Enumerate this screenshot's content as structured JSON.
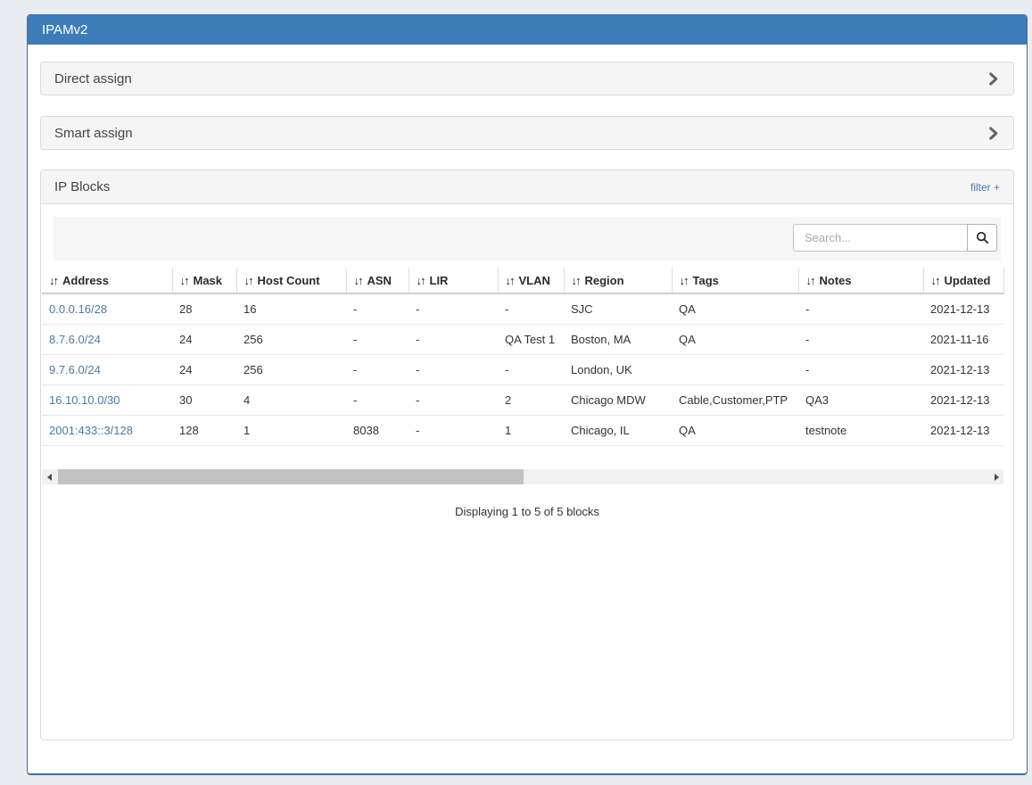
{
  "app": {
    "title": "IPAMv2"
  },
  "icons": {
    "sort_glyph": "↓↑"
  },
  "colors": {
    "header_blue": "#3e7cb9",
    "container_border": "#44719f",
    "link_blue": "#4a79ad",
    "panel_bg": "#f5f5f5"
  },
  "panels": {
    "direct_assign": {
      "title": "Direct assign"
    },
    "smart_assign": {
      "title": "Smart assign"
    },
    "ip_blocks": {
      "title": "IP Blocks",
      "filter_label": "filter +",
      "search_placeholder": "Search...",
      "summary": "Displaying 1 to 5 of 5 blocks",
      "table": {
        "columns": [
          {
            "key": "address",
            "label": "Address"
          },
          {
            "key": "mask",
            "label": "Mask"
          },
          {
            "key": "host_count",
            "label": "Host Count"
          },
          {
            "key": "asn",
            "label": "ASN"
          },
          {
            "key": "lir",
            "label": "LIR"
          },
          {
            "key": "vlan",
            "label": "VLAN"
          },
          {
            "key": "region",
            "label": "Region"
          },
          {
            "key": "tags",
            "label": "Tags"
          },
          {
            "key": "notes",
            "label": "Notes"
          },
          {
            "key": "updated",
            "label": "Updated"
          }
        ],
        "rows": [
          {
            "address": "0.0.0.16/28",
            "mask": "28",
            "host_count": "16",
            "asn": "-",
            "lir": "-",
            "vlan": "-",
            "region": "SJC",
            "tags": "QA",
            "notes": "-",
            "updated": "2021-12-13"
          },
          {
            "address": "8.7.6.0/24",
            "mask": "24",
            "host_count": "256",
            "asn": "-",
            "lir": "-",
            "vlan": "QA Test 1",
            "region": "Boston, MA",
            "tags": "QA",
            "notes": "-",
            "updated": "2021-11-16"
          },
          {
            "address": "9.7.6.0/24",
            "mask": "24",
            "host_count": "256",
            "asn": "-",
            "lir": "-",
            "vlan": "-",
            "region": "London, UK",
            "tags": "",
            "notes": "-",
            "updated": "2021-12-13"
          },
          {
            "address": "16.10.10.0/30",
            "mask": "30",
            "host_count": "4",
            "asn": "-",
            "lir": "-",
            "vlan": "2",
            "region": "Chicago MDW",
            "tags": "Cable,Customer,PTP",
            "notes": "QA3",
            "updated": "2021-12-13"
          },
          {
            "address": "2001:433::3/128",
            "mask": "128",
            "host_count": "1",
            "asn": "8038",
            "lir": "-",
            "vlan": "1",
            "region": "Chicago, IL",
            "tags": "QA",
            "notes": "testnote",
            "updated": "2021-12-13"
          }
        ]
      }
    }
  }
}
